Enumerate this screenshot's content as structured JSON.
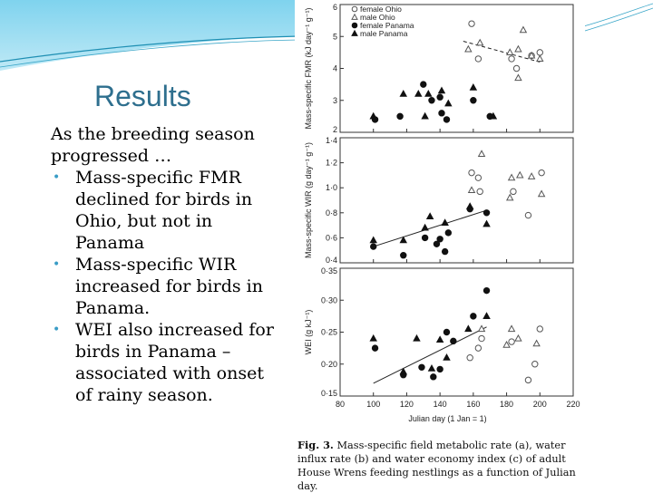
{
  "slide": {
    "title": "Results",
    "intro": "As the breeding season progressed …",
    "bullets": [
      "Mass-specific FMR declined for birds in Ohio, but not in Panama",
      "Mass-specific WIR increased for birds in Panama.",
      "WEI also increased for birds in Panama – associated with onset of rainy season."
    ]
  },
  "figure": {
    "caption_label": "Fig. 3.",
    "caption_text": "Mass-specific field metabolic rate (a), water influx rate (b) and water economy index (c) of adult House Wrens feeding nestlings as a function of Julian day.",
    "xlabel": "Julian day (1 Jan = 1)",
    "xlim": [
      80,
      220
    ],
    "xticks": [
      "80",
      "100",
      "120",
      "140",
      "160",
      "180",
      "200",
      "220"
    ],
    "xtick_values": [
      80,
      100,
      120,
      140,
      160,
      180,
      200,
      220
    ]
  },
  "chart_data": [
    {
      "type": "scatter",
      "ylabel": "Mass-specific FMR (kJ day⁻¹ g⁻¹)",
      "ylim": [
        2,
        6
      ],
      "yticks": [
        "2",
        "3",
        "4",
        "5",
        "6"
      ],
      "ytick_values": [
        2,
        3,
        4,
        5,
        6
      ],
      "legend_position": "top-left",
      "legend": [
        "female Ohio",
        "male Ohio",
        "female Panama",
        "male Panama"
      ],
      "series": [
        {
          "name": "female Ohio",
          "marker": "open-circle",
          "points": [
            [
              159,
              5.4
            ],
            [
              163,
              4.3
            ],
            [
              183,
              4.3
            ],
            [
              186,
              4.0
            ],
            [
              195,
              4.4
            ],
            [
              200,
              4.5
            ]
          ]
        },
        {
          "name": "male Ohio",
          "marker": "open-triangle",
          "points": [
            [
              157,
              4.6
            ],
            [
              164,
              4.8
            ],
            [
              182,
              4.5
            ],
            [
              187,
              4.6
            ],
            [
              187,
              3.7
            ],
            [
              190,
              5.2
            ],
            [
              195,
              4.4
            ],
            [
              200,
              4.3
            ]
          ]
        },
        {
          "name": "female Panama",
          "marker": "filled-circle",
          "points": [
            [
              101,
              2.4
            ],
            [
              116,
              2.5
            ],
            [
              130,
              3.5
            ],
            [
              135,
              3.0
            ],
            [
              140,
              3.1
            ],
            [
              141,
              2.6
            ],
            [
              144,
              2.4
            ],
            [
              160,
              3.0
            ],
            [
              170,
              2.5
            ]
          ]
        },
        {
          "name": "male Panama",
          "marker": "filled-triangle",
          "points": [
            [
              100,
              2.5
            ],
            [
              118,
              3.2
            ],
            [
              127,
              3.2
            ],
            [
              131,
              2.5
            ],
            [
              133,
              3.2
            ],
            [
              141,
              3.3
            ],
            [
              145,
              2.9
            ],
            [
              160,
              3.4
            ],
            [
              172,
              2.5
            ]
          ]
        }
      ],
      "trend_lines": [
        {
          "for": "Ohio",
          "style": "dashed",
          "from": [
            154,
            4.85
          ],
          "to": [
            200,
            4.2
          ]
        }
      ]
    },
    {
      "type": "scatter",
      "ylabel": "Mass-specific WIR (g day⁻¹ g⁻¹)",
      "ylim": [
        0.4,
        1.4
      ],
      "yticks": [
        "0·4",
        "0·6",
        "0·8",
        "1·0",
        "1·2",
        "1·4"
      ],
      "ytick_values": [
        0.4,
        0.6,
        0.8,
        1.0,
        1.2,
        1.4
      ],
      "series": [
        {
          "name": "female Ohio",
          "marker": "open-circle",
          "points": [
            [
              159,
              1.12
            ],
            [
              163,
              1.08
            ],
            [
              164,
              0.97
            ],
            [
              184,
              0.97
            ],
            [
              193,
              0.78
            ],
            [
              201,
              1.12
            ]
          ]
        },
        {
          "name": "male Ohio",
          "marker": "open-triangle",
          "points": [
            [
              159,
              0.98
            ],
            [
              165,
              1.27
            ],
            [
              182,
              0.92
            ],
            [
              183,
              1.08
            ],
            [
              188,
              1.1
            ],
            [
              195,
              1.09
            ],
            [
              201,
              0.95
            ]
          ]
        },
        {
          "name": "female Panama",
          "marker": "filled-circle",
          "points": [
            [
              100,
              0.53
            ],
            [
              118,
              0.46
            ],
            [
              131,
              0.6
            ],
            [
              138,
              0.55
            ],
            [
              140,
              0.59
            ],
            [
              143,
              0.49
            ],
            [
              145,
              0.64
            ],
            [
              158,
              0.83
            ],
            [
              168,
              0.8
            ]
          ]
        },
        {
          "name": "male Panama",
          "marker": "filled-triangle",
          "points": [
            [
              100,
              0.58
            ],
            [
              118,
              0.58
            ],
            [
              131,
              0.68
            ],
            [
              134,
              0.77
            ],
            [
              143,
              0.72
            ],
            [
              158,
              0.85
            ],
            [
              168,
              0.71
            ]
          ]
        }
      ],
      "trend_lines": [
        {
          "for": "Panama",
          "style": "solid",
          "from": [
            100,
            0.53
          ],
          "to": [
            168,
            0.82
          ]
        }
      ]
    },
    {
      "type": "scatter",
      "ylabel": "WEI (g kJ⁻¹)",
      "ylim": [
        0.15,
        0.35
      ],
      "yticks": [
        "0·15",
        "0·20",
        "0·25",
        "0·30",
        "0·35"
      ],
      "ytick_values": [
        0.15,
        0.2,
        0.25,
        0.3,
        0.35
      ],
      "series": [
        {
          "name": "female Ohio",
          "marker": "open-circle",
          "points": [
            [
              158,
              0.21
            ],
            [
              163,
              0.225
            ],
            [
              165,
              0.24
            ],
            [
              183,
              0.235
            ],
            [
              193,
              0.175
            ],
            [
              197,
              0.2
            ],
            [
              200,
              0.255
            ]
          ]
        },
        {
          "name": "male Ohio",
          "marker": "open-triangle",
          "points": [
            [
              165,
              0.255
            ],
            [
              180,
              0.23
            ],
            [
              183,
              0.255
            ],
            [
              187,
              0.24
            ],
            [
              198,
              0.232
            ]
          ]
        },
        {
          "name": "female Panama",
          "marker": "filled-circle",
          "points": [
            [
              101,
              0.225
            ],
            [
              118,
              0.183
            ],
            [
              129,
              0.195
            ],
            [
              136,
              0.18
            ],
            [
              140,
              0.192
            ],
            [
              144,
              0.25
            ],
            [
              148,
              0.236
            ],
            [
              160,
              0.275
            ],
            [
              168,
              0.315
            ]
          ]
        },
        {
          "name": "male Panama",
          "marker": "filled-triangle",
          "points": [
            [
              100,
              0.24
            ],
            [
              118,
              0.188
            ],
            [
              126,
              0.24
            ],
            [
              135,
              0.193
            ],
            [
              140,
              0.238
            ],
            [
              144,
              0.21
            ],
            [
              157,
              0.255
            ],
            [
              168,
              0.275
            ]
          ]
        }
      ],
      "trend_lines": [
        {
          "for": "Panama",
          "style": "solid",
          "from": [
            100,
            0.17
          ],
          "to": [
            168,
            0.258
          ]
        }
      ]
    }
  ]
}
